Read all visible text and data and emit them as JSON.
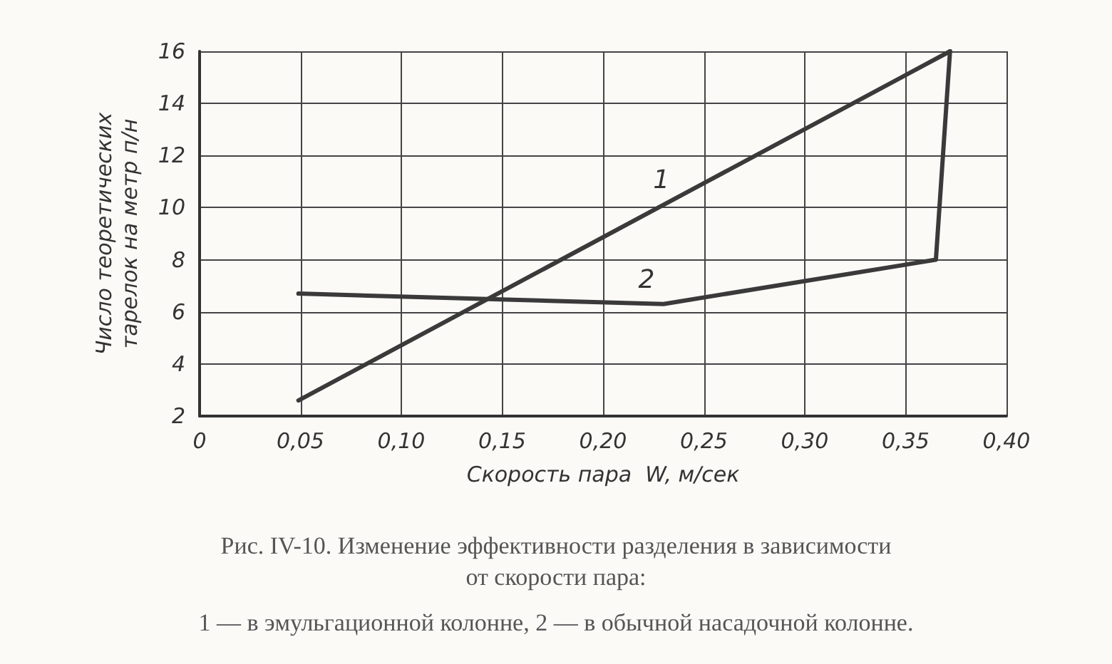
{
  "chart_data": {
    "type": "line",
    "xlabel": "Скорость пара  W, м/сек",
    "ylabel": "Число теоретических\nтарелок на метр п/н",
    "xlim": [
      0,
      0.4
    ],
    "xticks": [
      0,
      {
        "value": 0.05,
        "label": "0,05"
      },
      {
        "value": 0.1,
        "label": "0,10"
      },
      {
        "value": 0.15,
        "label": "0,15"
      },
      {
        "value": 0.2,
        "label": "0,20"
      },
      {
        "value": 0.25,
        "label": "0,25"
      },
      {
        "value": 0.3,
        "label": "0,30"
      },
      {
        "value": 0.35,
        "label": "0,35"
      },
      {
        "value": 0.4,
        "label": "0,40"
      }
    ],
    "ylim": [
      2,
      16
    ],
    "yticks": [
      2,
      4,
      6,
      8,
      10,
      12,
      14,
      16
    ],
    "grid": true,
    "marker": "none",
    "line_style": "solid",
    "series": [
      {
        "name": "1",
        "color": "#3a3a3a",
        "x": [
          0.049,
          0.372
        ],
        "values": [
          2.6,
          16
        ]
      },
      {
        "name": "2",
        "color": "#3a3a3a",
        "x": [
          0.049,
          0.23,
          0.365,
          0.372
        ],
        "values": [
          6.7,
          6.3,
          8.0,
          16
        ]
      }
    ],
    "annotations": [
      "Рис. IV-10. Изменение эффективности разделения в зависимости\nот скорости пара:",
      "1 — в эмульгационной колонне, 2 — в обычной насадочной колонне."
    ]
  }
}
